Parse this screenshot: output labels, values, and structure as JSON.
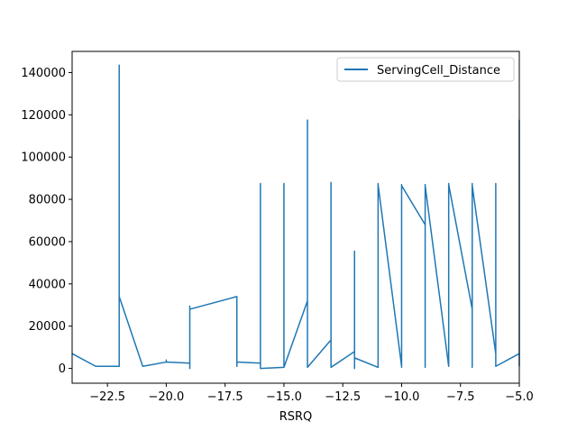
{
  "chart_data": {
    "type": "line",
    "title": "",
    "xlabel": "RSRQ",
    "ylabel": "",
    "xlim": [
      -24,
      -5
    ],
    "ylim": [
      -7000,
      150000
    ],
    "grid": false,
    "legend_position": "top-right",
    "x_ticks": [
      -22.5,
      -20.0,
      -17.5,
      -15.0,
      -12.5,
      -10.0,
      -7.5,
      -5.0
    ],
    "x_tick_labels": [
      "−22.5",
      "−20.0",
      "−17.5",
      "−15.0",
      "−12.5",
      "−10.0",
      "−7.5",
      "−5.0"
    ],
    "y_ticks": [
      0,
      20000,
      40000,
      60000,
      80000,
      100000,
      120000,
      140000
    ],
    "y_tick_labels": [
      "0",
      "20000",
      "40000",
      "60000",
      "80000",
      "100000",
      "120000",
      "140000"
    ],
    "series": [
      {
        "name": "ServingCell_Distance",
        "color": "#1f77b4",
        "x": [
          -24,
          -23,
          -22,
          -22,
          -22,
          -22,
          -22,
          -21,
          -20,
          -20,
          -20,
          -19,
          -19,
          -19,
          -19,
          -19,
          -17,
          -17,
          -17,
          -17,
          -16,
          -16,
          -16,
          -15,
          -15,
          -15,
          -14,
          -14,
          -14,
          -13,
          -13,
          -13,
          -12,
          -12,
          -12,
          -12,
          -11,
          -11,
          -11,
          -11,
          -10,
          -10,
          -10,
          -10,
          -9,
          -9,
          -9,
          -9,
          -8,
          -8,
          -8,
          -8,
          -7,
          -7,
          -7,
          -7,
          -6,
          -6,
          -6,
          -5,
          -5,
          -5
        ],
        "y": [
          7000,
          1000,
          1000,
          143500,
          1000,
          140000,
          34000,
          1000,
          3000,
          4000,
          3000,
          2500,
          0,
          29500,
          500,
          28000,
          34000,
          1000,
          3500,
          3000,
          2500,
          87500,
          0,
          500,
          87500,
          500,
          32000,
          117500,
          500,
          13500,
          88000,
          500,
          8000,
          55500,
          0,
          5000,
          500,
          87500,
          500,
          87000,
          1000,
          87000,
          500,
          86500,
          68000,
          87000,
          500,
          86500,
          1000,
          87500,
          68500,
          87000,
          28000,
          87500,
          500,
          86500,
          7000,
          87500,
          1000,
          7000,
          117500,
          1000
        ]
      }
    ]
  }
}
